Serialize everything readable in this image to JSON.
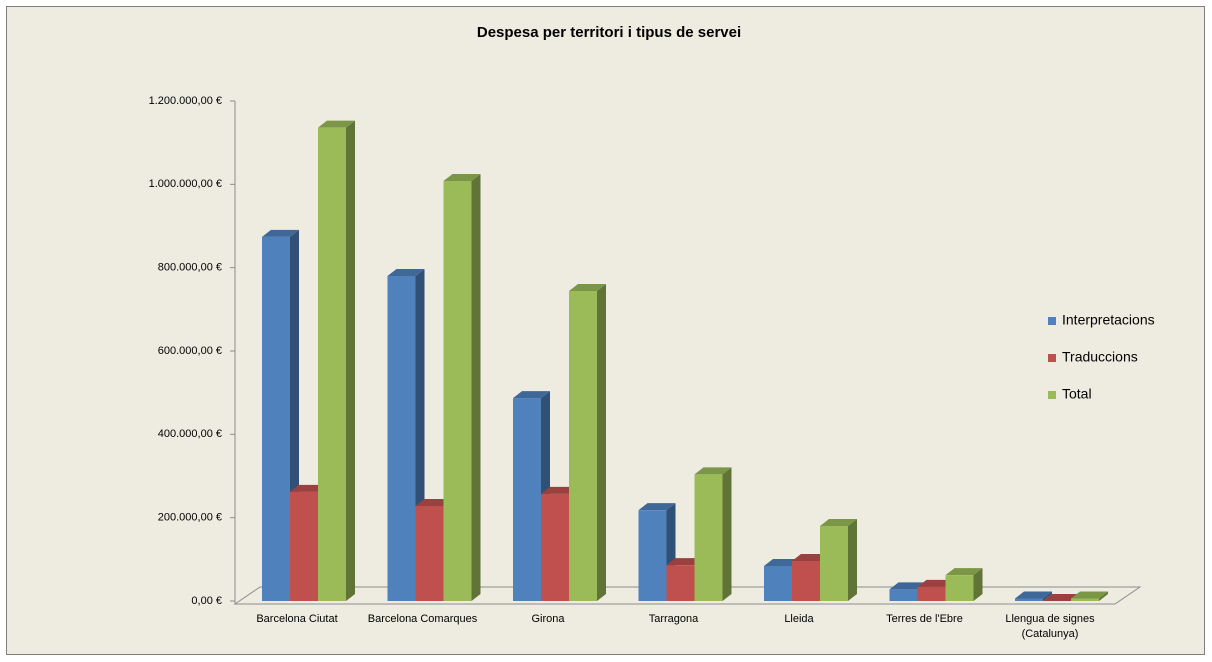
{
  "chart_data": {
    "type": "bar3d",
    "title": "Despesa per territori i tipus de servei",
    "categories": [
      "Barcelona Ciutat",
      "Barcelona Comarques",
      "Girona",
      "Tarragona",
      "Lleida",
      "Terres de l'Ebre",
      "Llengua de signes (Catalunya)"
    ],
    "series": [
      {
        "name": "Interpretacions",
        "color": "#4f81bd",
        "values": [
          874000,
          780000,
          487000,
          218000,
          84000,
          28000,
          6000
        ]
      },
      {
        "name": "Traduccions",
        "color": "#c0504d",
        "values": [
          262000,
          228000,
          257000,
          86000,
          96000,
          34000,
          0
        ]
      },
      {
        "name": "Total",
        "color": "#9bbb59",
        "values": [
          1136000,
          1008000,
          744000,
          304000,
          180000,
          62000,
          6000
        ]
      }
    ],
    "ylim": [
      0,
      1200000
    ],
    "yticks": [
      {
        "value": 0,
        "label": "0,00 €"
      },
      {
        "value": 200000,
        "label": "200.000,00 €"
      },
      {
        "value": 400000,
        "label": "400.000,00 €"
      },
      {
        "value": 600000,
        "label": "600.000,00 €"
      },
      {
        "value": 800000,
        "label": "800.000,00 €"
      },
      {
        "value": 1000000,
        "label": "1.000.000,00 €"
      },
      {
        "value": 1200000,
        "label": "1.200.000,00 €"
      }
    ],
    "legend": "right"
  }
}
